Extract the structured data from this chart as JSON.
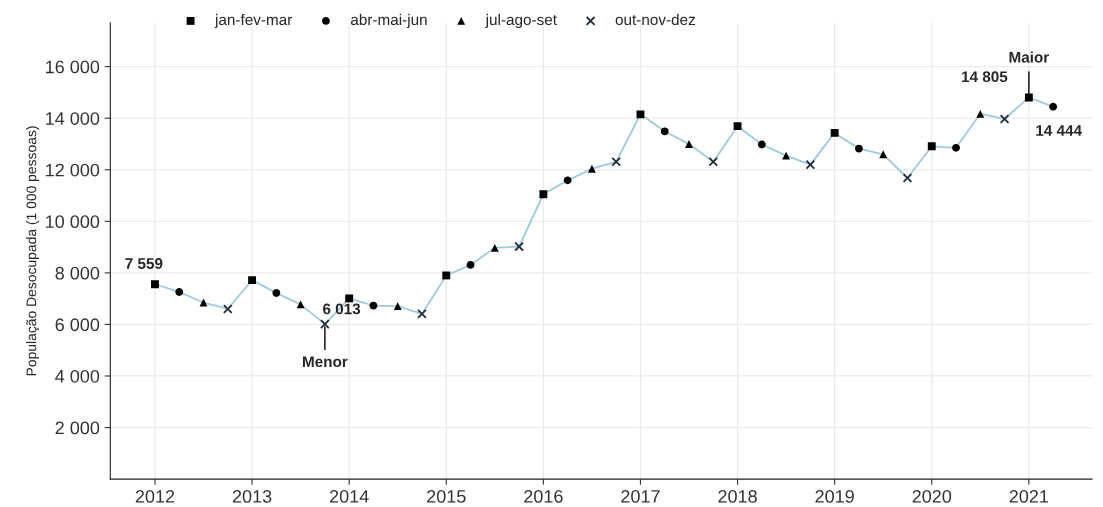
{
  "chart_data": {
    "type": "line",
    "ylabel": "População Desocupada (1 000 pessoas)",
    "xlim": [
      2011.54,
      2021.65
    ],
    "xticks": [
      2012,
      2013,
      2014,
      2015,
      2016,
      2017,
      2018,
      2019,
      2020,
      2021
    ],
    "ylim": [
      0,
      17700
    ],
    "yticks": [
      {
        "value": 2000,
        "label": "2 000"
      },
      {
        "value": 4000,
        "label": "4 000"
      },
      {
        "value": 6000,
        "label": "6 000"
      },
      {
        "value": 8000,
        "label": "8 000"
      },
      {
        "value": 10000,
        "label": "10 000"
      },
      {
        "value": 12000,
        "label": "12 000"
      },
      {
        "value": 14000,
        "label": "14 000"
      },
      {
        "value": 16000,
        "label": "16 000"
      }
    ],
    "grid": true,
    "legend": "top left",
    "series": [
      {
        "color": "#9ecae1",
        "marker": "none",
        "x": [
          2012,
          2012.25,
          2012.5,
          2012.75,
          2013,
          2013.25,
          2013.5,
          2013.75,
          2014,
          2014.25,
          2014.5,
          2014.75,
          2015,
          2015.25,
          2015.5,
          2015.75,
          2016,
          2016.25,
          2016.5,
          2016.75,
          2017,
          2017.25,
          2017.5,
          2017.75,
          2018,
          2018.25,
          2018.5,
          2018.75,
          2019,
          2019.25,
          2019.5,
          2019.75,
          2020,
          2020.25,
          2020.5,
          2020.75,
          2021,
          2021.25
        ],
        "values": [
          7559,
          7260,
          6850,
          6600,
          7720,
          7220,
          6780,
          6013,
          7010,
          6730,
          6710,
          6410,
          7900,
          8310,
          8970,
          9020,
          11050,
          11590,
          12040,
          12310,
          14150,
          13490,
          13000,
          12310,
          13690,
          12980,
          12550,
          12200,
          13430,
          12820,
          12600,
          11680,
          12910,
          12850,
          14170,
          13970,
          14805,
          14444
        ]
      },
      {
        "type": "scatter",
        "name": "jan-fev-mar",
        "color": "#000000",
        "marker": "square",
        "x": [
          2012,
          2013,
          2014,
          2015,
          2016,
          2017,
          2018,
          2019,
          2020,
          2021
        ],
        "values": [
          7559,
          7720,
          7010,
          7900,
          11050,
          14150,
          13690,
          13430,
          12910,
          14805
        ]
      },
      {
        "type": "scatter",
        "name": "abr-mai-jun",
        "color": "#000000",
        "marker": "circle",
        "x": [
          2012.25,
          2013.25,
          2014.25,
          2015.25,
          2016.25,
          2017.25,
          2018.25,
          2019.25,
          2020.25,
          2021.25
        ],
        "values": [
          7260,
          7220,
          6730,
          8310,
          11590,
          13490,
          12980,
          12820,
          12850,
          14444
        ]
      },
      {
        "type": "scatter",
        "name": "jul-ago-set",
        "color": "#000000",
        "marker": "triangle",
        "x": [
          2012.5,
          2013.5,
          2014.5,
          2015.5,
          2016.5,
          2017.5,
          2018.5,
          2019.5,
          2020.5
        ],
        "values": [
          6850,
          6780,
          6710,
          8970,
          12040,
          13000,
          12550,
          12600,
          14170
        ]
      },
      {
        "type": "scatter",
        "name": "out-nov-dez",
        "color": "#1f2d3d",
        "marker": "cross",
        "x": [
          2012.75,
          2013.75,
          2014.75,
          2015.75,
          2016.75,
          2017.75,
          2018.75,
          2019.75,
          2020.75
        ],
        "values": [
          6600,
          6013,
          6410,
          9020,
          12310,
          12310,
          12200,
          11680,
          13970
        ]
      }
    ],
    "annotations": [
      {
        "text": "7 559",
        "x": 2012,
        "y": 7559
      },
      {
        "text": "6 013",
        "x": 2013.75,
        "y": 6013
      },
      {
        "text": "Menor",
        "x": 2013.75,
        "y": 6013
      },
      {
        "text": "14 805",
        "x": 2021,
        "y": 14805
      },
      {
        "text": "Maior",
        "x": 2021,
        "y": 14805
      },
      {
        "text": "14 444",
        "x": 2021.25,
        "y": 14444
      }
    ]
  }
}
